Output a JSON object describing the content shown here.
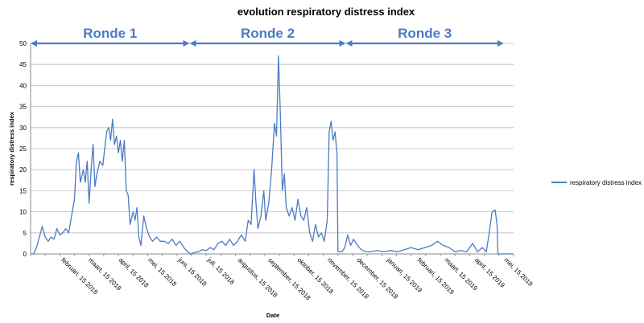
{
  "chart_data": {
    "type": "line",
    "title": "evolution respiratory distress index",
    "xlabel": "Date",
    "ylabel": "respiratory distress index",
    "ylim": [
      0,
      50
    ],
    "yticks": [
      0,
      5,
      10,
      15,
      20,
      25,
      30,
      35,
      40,
      45,
      50
    ],
    "x_start": "2018-01-15",
    "x_end": "2019-05-25",
    "xtick_labels": [
      {
        "date": "2018-02-15",
        "label": "februari, 15 2018"
      },
      {
        "date": "2018-03-15",
        "label": "maart, 15 2018"
      },
      {
        "date": "2018-04-15",
        "label": "april, 15 2018"
      },
      {
        "date": "2018-05-15",
        "label": "mei, 15 2018"
      },
      {
        "date": "2018-06-15",
        "label": "juni, 15 2018"
      },
      {
        "date": "2018-07-15",
        "label": "juli, 15 2018"
      },
      {
        "date": "2018-08-15",
        "label": "augustus, 15 2018"
      },
      {
        "date": "2018-09-15",
        "label": "september, 15 2018"
      },
      {
        "date": "2018-10-15",
        "label": "oktober, 15 2018"
      },
      {
        "date": "2018-11-15",
        "label": "november, 15 2018"
      },
      {
        "date": "2018-12-15",
        "label": "december, 15 2018"
      },
      {
        "date": "2019-01-15",
        "label": "januari, 15 2019"
      },
      {
        "date": "2019-02-15",
        "label": "februari, 15 2019"
      },
      {
        "date": "2019-03-15",
        "label": "maart, 15 2019"
      },
      {
        "date": "2019-04-15",
        "label": "april, 15 2019"
      },
      {
        "date": "2019-05-15",
        "label": "mei, 15 2019"
      }
    ],
    "rounds": [
      {
        "label": "Ronde 1",
        "start": "2018-01-15",
        "end": "2018-06-27"
      },
      {
        "label": "Ronde 2",
        "start": "2018-06-27",
        "end": "2018-12-04"
      },
      {
        "label": "Ronde 3",
        "start": "2018-12-04",
        "end": "2019-05-15"
      }
    ],
    "series": [
      {
        "name": "respiratory distress index",
        "color": "#4a7bc4",
        "points": [
          [
            "2018-01-15",
            0
          ],
          [
            "2018-01-18",
            0
          ],
          [
            "2018-01-21",
            1.5
          ],
          [
            "2018-01-24",
            4
          ],
          [
            "2018-01-27",
            6.5
          ],
          [
            "2018-01-30",
            4
          ],
          [
            "2018-02-02",
            3
          ],
          [
            "2018-02-05",
            4
          ],
          [
            "2018-02-08",
            3.5
          ],
          [
            "2018-02-11",
            6
          ],
          [
            "2018-02-14",
            4.5
          ],
          [
            "2018-02-17",
            5
          ],
          [
            "2018-02-20",
            6
          ],
          [
            "2018-02-23",
            5
          ],
          [
            "2018-02-26",
            9
          ],
          [
            "2018-03-01",
            13
          ],
          [
            "2018-03-03",
            22
          ],
          [
            "2018-03-05",
            24
          ],
          [
            "2018-03-07",
            17
          ],
          [
            "2018-03-10",
            20
          ],
          [
            "2018-03-12",
            17
          ],
          [
            "2018-03-14",
            22
          ],
          [
            "2018-03-16",
            12
          ],
          [
            "2018-03-18",
            20
          ],
          [
            "2018-03-20",
            26
          ],
          [
            "2018-03-22",
            16
          ],
          [
            "2018-03-24",
            19
          ],
          [
            "2018-03-27",
            22
          ],
          [
            "2018-03-30",
            21
          ],
          [
            "2018-04-01",
            25
          ],
          [
            "2018-04-03",
            29
          ],
          [
            "2018-04-05",
            30
          ],
          [
            "2018-04-07",
            27
          ],
          [
            "2018-04-09",
            32
          ],
          [
            "2018-04-11",
            26
          ],
          [
            "2018-04-13",
            28
          ],
          [
            "2018-04-15",
            24
          ],
          [
            "2018-04-17",
            27
          ],
          [
            "2018-04-19",
            22
          ],
          [
            "2018-04-21",
            27
          ],
          [
            "2018-04-23",
            15
          ],
          [
            "2018-04-25",
            14
          ],
          [
            "2018-04-27",
            7
          ],
          [
            "2018-04-30",
            10
          ],
          [
            "2018-05-02",
            8
          ],
          [
            "2018-05-04",
            11
          ],
          [
            "2018-05-06",
            4
          ],
          [
            "2018-05-08",
            2
          ],
          [
            "2018-05-11",
            9
          ],
          [
            "2018-05-14",
            6
          ],
          [
            "2018-05-17",
            4
          ],
          [
            "2018-05-20",
            3
          ],
          [
            "2018-05-24",
            4
          ],
          [
            "2018-05-28",
            3
          ],
          [
            "2018-06-01",
            3
          ],
          [
            "2018-06-05",
            2.5
          ],
          [
            "2018-06-09",
            3.5
          ],
          [
            "2018-06-13",
            2
          ],
          [
            "2018-06-17",
            3
          ],
          [
            "2018-06-21",
            1.5
          ],
          [
            "2018-06-25",
            0.5
          ],
          [
            "2018-06-28",
            0
          ],
          [
            "2018-07-02",
            0.3
          ],
          [
            "2018-07-06",
            0.5
          ],
          [
            "2018-07-10",
            1
          ],
          [
            "2018-07-14",
            0.8
          ],
          [
            "2018-07-18",
            1.5
          ],
          [
            "2018-07-22",
            1
          ],
          [
            "2018-07-26",
            2.5
          ],
          [
            "2018-07-30",
            3
          ],
          [
            "2018-08-03",
            2
          ],
          [
            "2018-08-07",
            3.5
          ],
          [
            "2018-08-11",
            2
          ],
          [
            "2018-08-15",
            3
          ],
          [
            "2018-08-19",
            4.5
          ],
          [
            "2018-08-23",
            3
          ],
          [
            "2018-08-26",
            8
          ],
          [
            "2018-08-29",
            7
          ],
          [
            "2018-09-01",
            20
          ],
          [
            "2018-09-03",
            12
          ],
          [
            "2018-09-05",
            6
          ],
          [
            "2018-09-08",
            9
          ],
          [
            "2018-09-11",
            15
          ],
          [
            "2018-09-13",
            8
          ],
          [
            "2018-09-16",
            12
          ],
          [
            "2018-09-19",
            20
          ],
          [
            "2018-09-22",
            31
          ],
          [
            "2018-09-24",
            28
          ],
          [
            "2018-09-26",
            47
          ],
          [
            "2018-09-28",
            33
          ],
          [
            "2018-09-30",
            15
          ],
          [
            "2018-10-02",
            19
          ],
          [
            "2018-10-04",
            11
          ],
          [
            "2018-10-07",
            9
          ],
          [
            "2018-10-10",
            11
          ],
          [
            "2018-10-13",
            8
          ],
          [
            "2018-10-16",
            13
          ],
          [
            "2018-10-19",
            9
          ],
          [
            "2018-10-22",
            8
          ],
          [
            "2018-10-25",
            11
          ],
          [
            "2018-10-28",
            5
          ],
          [
            "2018-10-31",
            3
          ],
          [
            "2018-11-03",
            7
          ],
          [
            "2018-11-06",
            4
          ],
          [
            "2018-11-09",
            5
          ],
          [
            "2018-11-12",
            3
          ],
          [
            "2018-11-15",
            8
          ],
          [
            "2018-11-17",
            29
          ],
          [
            "2018-11-19",
            31.5
          ],
          [
            "2018-11-21",
            27
          ],
          [
            "2018-11-23",
            29
          ],
          [
            "2018-11-25",
            24
          ],
          [
            "2018-11-26",
            0.5
          ],
          [
            "2018-11-30",
            0.5
          ],
          [
            "2018-12-03",
            1.5
          ],
          [
            "2018-12-06",
            4.5
          ],
          [
            "2018-12-09",
            2
          ],
          [
            "2018-12-12",
            3.5
          ],
          [
            "2018-12-16",
            2
          ],
          [
            "2018-12-20",
            1
          ],
          [
            "2018-12-25",
            0.5
          ],
          [
            "2018-12-30",
            0.5
          ],
          [
            "2019-01-05",
            0.8
          ],
          [
            "2019-01-12",
            0.5
          ],
          [
            "2019-01-19",
            0.8
          ],
          [
            "2019-01-26",
            0.5
          ],
          [
            "2019-02-02",
            1
          ],
          [
            "2019-02-09",
            1.5
          ],
          [
            "2019-02-16",
            1
          ],
          [
            "2019-02-23",
            1.5
          ],
          [
            "2019-03-02",
            2
          ],
          [
            "2019-03-08",
            3
          ],
          [
            "2019-03-14",
            2
          ],
          [
            "2019-03-20",
            1.5
          ],
          [
            "2019-03-26",
            0.5
          ],
          [
            "2019-04-01",
            0.8
          ],
          [
            "2019-04-07",
            0.5
          ],
          [
            "2019-04-13",
            2.5
          ],
          [
            "2019-04-18",
            0.5
          ],
          [
            "2019-04-23",
            1.5
          ],
          [
            "2019-04-27",
            0.5
          ],
          [
            "2019-04-30",
            5
          ],
          [
            "2019-05-03",
            10
          ],
          [
            "2019-05-06",
            10.5
          ],
          [
            "2019-05-08",
            7
          ],
          [
            "2019-05-09",
            0
          ],
          [
            "2019-05-15",
            0
          ],
          [
            "2019-05-25",
            0
          ]
        ]
      }
    ],
    "grid": true,
    "legend_position": "right",
    "round_arrow_color": "#4a7bc4"
  }
}
